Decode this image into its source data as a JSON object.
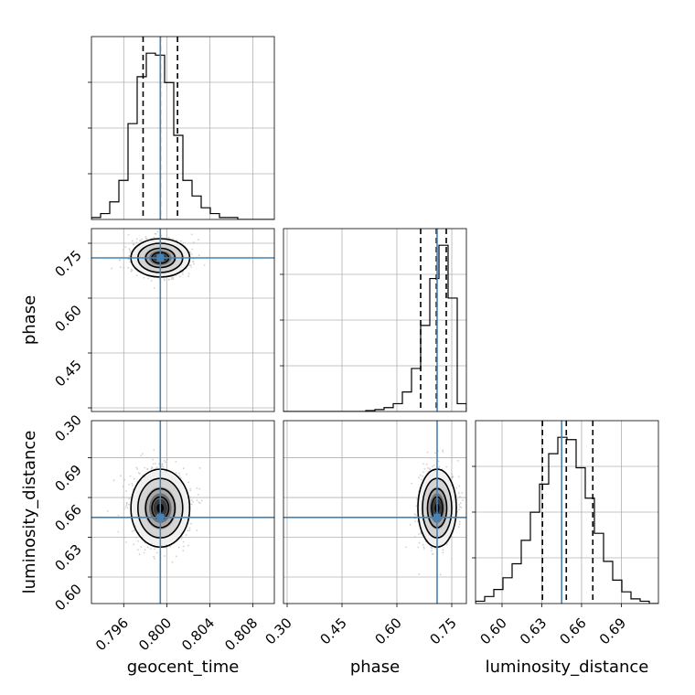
{
  "chart_data": {
    "type": "corner",
    "parameters": [
      "geocent_time",
      "phase",
      "luminosity_distance"
    ],
    "truths": {
      "geocent_time": 0.7994,
      "phase": 0.71,
      "luminosity_distance": 0.645
    },
    "colors": {
      "truth": "#4682b4",
      "hist": "#000000",
      "grid": "#b0b0b0",
      "scatter": "#bdbdbd"
    },
    "grid": true,
    "ranges": {
      "geocent_time": [
        0.793,
        0.81
      ],
      "phase": [
        0.29,
        0.79
      ],
      "luminosity_distance": [
        0.58,
        0.718
      ]
    },
    "ticks": {
      "geocent_time": [
        "0.796",
        "0.800",
        "0.804",
        "0.808"
      ],
      "phase": [
        "0.30",
        "0.45",
        "0.60",
        "0.75"
      ],
      "luminosity_distance": [
        "0.60",
        "0.63",
        "0.66",
        "0.69"
      ]
    },
    "histograms": {
      "geocent_time": {
        "bin_edges": [
          0.793,
          0.79385,
          0.7947,
          0.79555,
          0.7964,
          0.79725,
          0.7981,
          0.79895,
          0.7998,
          0.80065,
          0.8015,
          0.80235,
          0.8032,
          0.80405,
          0.8049,
          0.80575,
          0.8066,
          0.80745,
          0.8083,
          0.80915,
          0.81
        ],
        "counts": [
          1,
          3,
          9,
          20,
          49,
          73,
          85,
          84,
          70,
          43,
          20,
          12,
          6,
          3,
          1,
          1,
          0,
          0,
          0,
          0
        ],
        "quantiles": [
          0.7978,
          0.7994,
          0.801
        ]
      },
      "phase": {
        "bin_edges": [
          0.29,
          0.315,
          0.34,
          0.365,
          0.39,
          0.415,
          0.44,
          0.465,
          0.49,
          0.515,
          0.54,
          0.565,
          0.59,
          0.615,
          0.64,
          0.665,
          0.69,
          0.715,
          0.74,
          0.765,
          0.79
        ],
        "counts": [
          0,
          0,
          0,
          0,
          0,
          0,
          0,
          0,
          0,
          0.5,
          1,
          2,
          4,
          10,
          22,
          44,
          68,
          85,
          58,
          4
        ],
        "quantiles": [
          0.665,
          0.708,
          0.735
        ]
      },
      "luminosity_distance": {
        "bin_edges": [
          0.58,
          0.5869,
          0.5938,
          0.6007,
          0.6076,
          0.6145,
          0.6214,
          0.6283,
          0.6352,
          0.6421,
          0.649,
          0.6559,
          0.6628,
          0.6697,
          0.6766,
          0.6835,
          0.6904,
          0.6973,
          0.7042,
          0.7111,
          0.718
        ],
        "counts": [
          1,
          3,
          6,
          11,
          17,
          27,
          39,
          51,
          64,
          71,
          70,
          58,
          45,
          30,
          18,
          10,
          5,
          2,
          1,
          0
        ],
        "quantiles": [
          0.6305,
          0.6485,
          0.6685
        ]
      }
    },
    "joint_2d": [
      {
        "x": "geocent_time",
        "y": "phase",
        "center": [
          0.7994,
          0.71
        ],
        "sd": [
          0.0013,
          0.025
        ]
      },
      {
        "x": "geocent_time",
        "y": "luminosity_distance",
        "center": [
          0.7994,
          0.652
        ],
        "sd": [
          0.0013,
          0.014
        ]
      },
      {
        "x": "phase",
        "y": "luminosity_distance",
        "center": [
          0.71,
          0.652
        ],
        "sd": [
          0.025,
          0.014
        ]
      }
    ],
    "xlabels": [
      "geocent_time",
      "phase",
      "luminosity_distance"
    ],
    "ylabels": [
      "",
      "phase",
      "luminosity_distance"
    ]
  }
}
